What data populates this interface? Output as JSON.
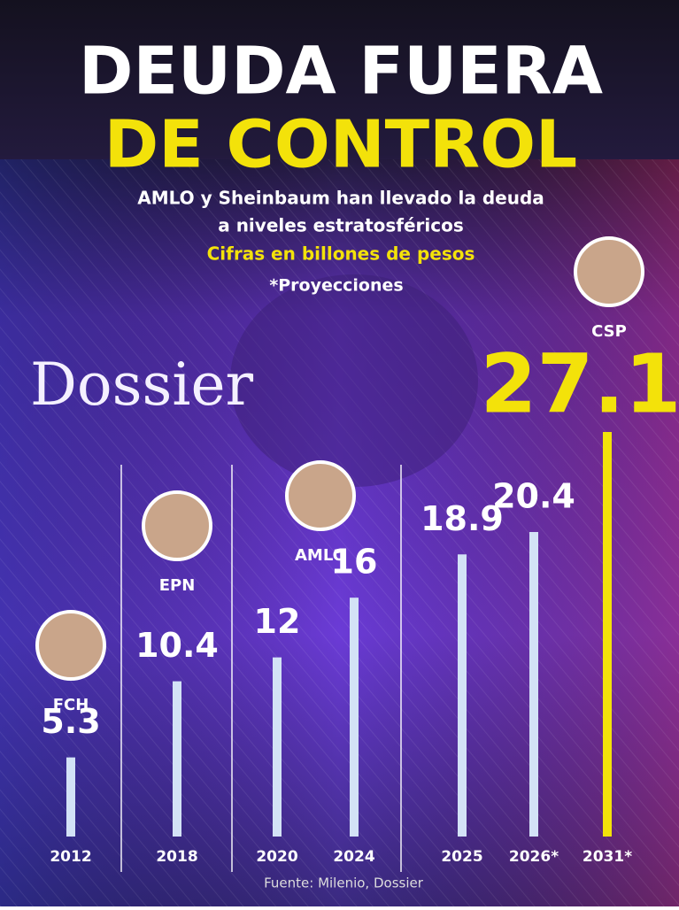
{
  "chart_data": {
    "type": "bar",
    "title_line1": "DEUDA FUERA",
    "title_line2": "DE CONTROL",
    "subtitle": [
      "AMLO y Sheinbaum han llevado la deuda",
      "a niveles estratosféricos"
    ],
    "note": "Cifras en billones de pesos",
    "projection_note": "*Proyecciones",
    "logo": "Dossier",
    "source": "Fuente: Milenio, Dossier",
    "groups": [
      {
        "label": "FCH",
        "categories": [
          "2012"
        ],
        "values": [
          5.3
        ],
        "colors": [
          "#d3e2f6"
        ]
      },
      {
        "label": "EPN",
        "categories": [
          "2018"
        ],
        "values": [
          10.4
        ],
        "colors": [
          "#d3e2f6"
        ]
      },
      {
        "label": "AMLO",
        "categories": [
          "2020",
          "2024"
        ],
        "values": [
          12,
          16
        ],
        "colors": [
          "#d3e2f6",
          "#d3e2f6"
        ]
      },
      {
        "label": "CSP",
        "categories": [
          "2025",
          "2026*",
          "2031*"
        ],
        "values": [
          18.9,
          20.4,
          27.1
        ],
        "colors": [
          "#d3e2f6",
          "#d3e2f6",
          "#f3e20a"
        ]
      }
    ]
  }
}
